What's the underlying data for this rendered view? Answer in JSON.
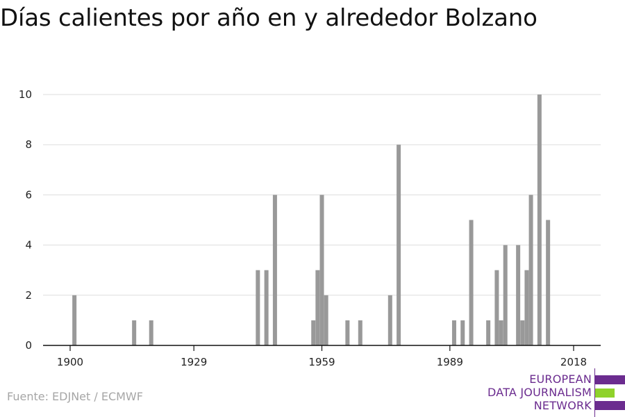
{
  "title": "Días calientes por año en y alrededor Bolzano",
  "source": "Fuente: EDJNet / ECMWF",
  "logo": {
    "lines": [
      "EUROPEAN",
      "DATA JOURNALISM",
      "NETWORK"
    ],
    "colors": {
      "purple": "#6b2c8f",
      "green": "#8fd22c"
    }
  },
  "chart_data": {
    "type": "bar",
    "title": "Días calientes por año en y alrededor Bolzano",
    "xlabel": "",
    "ylabel": "",
    "xlim": [
      1900,
      2018
    ],
    "ylim": [
      0,
      10
    ],
    "xticks": [
      1900,
      1929,
      1959,
      1989,
      2018
    ],
    "yticks": [
      0,
      2,
      4,
      6,
      8,
      10
    ],
    "grid": true,
    "bar_color": "#999999",
    "x": [
      1901,
      1915,
      1919,
      1929,
      1930,
      1931,
      1932,
      1933,
      1934,
      1935,
      1936,
      1937,
      1938,
      1939,
      1940,
      1941,
      1942,
      1943,
      1944,
      1945,
      1946,
      1947,
      1948,
      1949,
      1950,
      1951,
      1952,
      1953,
      1954,
      1955,
      1956,
      1957,
      1958,
      1959,
      1960,
      1961,
      1962,
      1963,
      1964,
      1965,
      1966,
      1967,
      1968,
      1969,
      1970,
      1971,
      1972,
      1973,
      1974,
      1975,
      1976,
      1977,
      1978,
      1979,
      1980,
      1981,
      1982,
      1983,
      1984,
      1985,
      1986,
      1987,
      1988,
      1989,
      1990,
      1991,
      1992,
      1993,
      1994,
      1995,
      1996,
      1997,
      1998,
      1999,
      2000,
      2001,
      2002,
      2003,
      2004,
      2005,
      2006,
      2007,
      2008,
      2009,
      2010,
      2011,
      2012,
      2013,
      2014,
      2015,
      2016,
      2017
    ],
    "values": [
      2,
      1,
      1,
      0,
      0,
      0,
      0,
      0,
      0,
      0,
      0,
      0,
      0,
      0,
      0,
      0,
      0,
      0,
      3,
      0,
      3,
      0,
      6,
      0,
      0,
      0,
      0,
      0,
      0,
      0,
      0,
      1,
      3,
      6,
      2,
      0,
      0,
      0,
      0,
      1,
      0,
      0,
      1,
      0,
      0,
      0,
      0,
      0,
      0,
      2,
      0,
      8,
      0,
      0,
      0,
      0,
      0,
      0,
      0,
      0,
      0,
      0,
      0,
      0,
      1,
      0,
      1,
      0,
      5,
      0,
      0,
      0,
      1,
      0,
      3,
      1,
      4,
      0,
      0,
      4,
      1,
      3,
      6,
      0,
      10,
      0,
      5,
      0,
      0,
      0,
      0,
      0
    ]
  }
}
